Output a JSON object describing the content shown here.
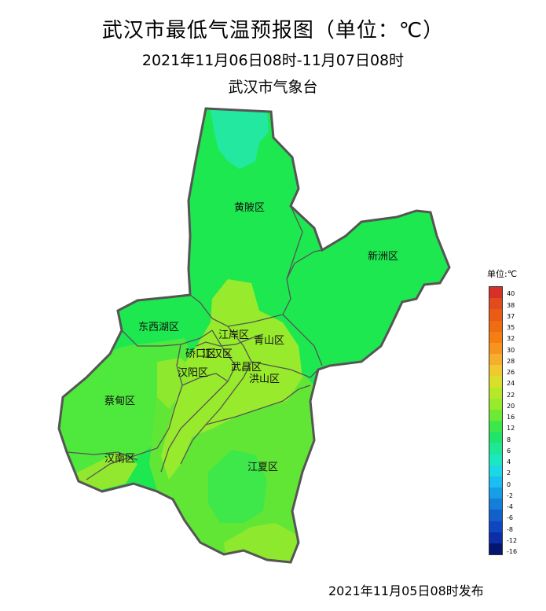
{
  "header": {
    "title": "武汉市最低气温预报图（单位：℃）",
    "subtitle": "2021年11月06日08时-11月07日08时",
    "agency": "武汉市气象台"
  },
  "footer": {
    "issued": "2021年11月05日08时发布"
  },
  "districts": [
    {
      "id": "huangpi",
      "name": "黄陂区"
    },
    {
      "id": "xinzhou",
      "name": "新洲区"
    },
    {
      "id": "dongxihu",
      "name": "东西湖区"
    },
    {
      "id": "jiangan",
      "name": "江岸区"
    },
    {
      "id": "qiaokou",
      "name": "硚口区"
    },
    {
      "id": "jianghan",
      "name": "江汉区"
    },
    {
      "id": "qingshan",
      "name": "青山区"
    },
    {
      "id": "hanyang",
      "name": "汉阳区"
    },
    {
      "id": "wuchang",
      "name": "武昌区"
    },
    {
      "id": "hongshan",
      "name": "洪山区"
    },
    {
      "id": "caidian",
      "name": "蔡甸区"
    },
    {
      "id": "hannan",
      "name": "汉南区"
    },
    {
      "id": "jiangxia",
      "name": "江夏区"
    }
  ],
  "legend": {
    "title": "单位:℃",
    "steps": [
      {
        "label": "40",
        "color": "#d73027"
      },
      {
        "label": "38",
        "color": "#e34a1e"
      },
      {
        "label": "37",
        "color": "#ea5b15"
      },
      {
        "label": "35",
        "color": "#f06c12"
      },
      {
        "label": "32",
        "color": "#f47e12"
      },
      {
        "label": "30",
        "color": "#f79420"
      },
      {
        "label": "28",
        "color": "#f7ad2e"
      },
      {
        "label": "26",
        "color": "#f0c830"
      },
      {
        "label": "24",
        "color": "#d8e02a"
      },
      {
        "label": "22",
        "color": "#b6e82a"
      },
      {
        "label": "20",
        "color": "#98ea2c"
      },
      {
        "label": "16",
        "color": "#6eea34"
      },
      {
        "label": "12",
        "color": "#3ee84a"
      },
      {
        "label": "8",
        "color": "#22e468"
      },
      {
        "label": "6",
        "color": "#1ee896"
      },
      {
        "label": "4",
        "color": "#1be8c0"
      },
      {
        "label": "2",
        "color": "#1ad8e4"
      },
      {
        "label": "0",
        "color": "#18bff0"
      },
      {
        "label": "-2",
        "color": "#169ee8"
      },
      {
        "label": "-4",
        "color": "#147ed8"
      },
      {
        "label": "-6",
        "color": "#1260cc"
      },
      {
        "label": "-8",
        "color": "#1046c0"
      },
      {
        "label": "-12",
        "color": "#0c2ea8"
      },
      {
        "label": "-16",
        "color": "#061670"
      }
    ]
  },
  "colors": {
    "cool_green": "#1ee850",
    "mid_green": "#5fe636",
    "warm_yellowgreen": "#9be82e",
    "cold_north": "#22e8a0",
    "border": "#555555"
  }
}
